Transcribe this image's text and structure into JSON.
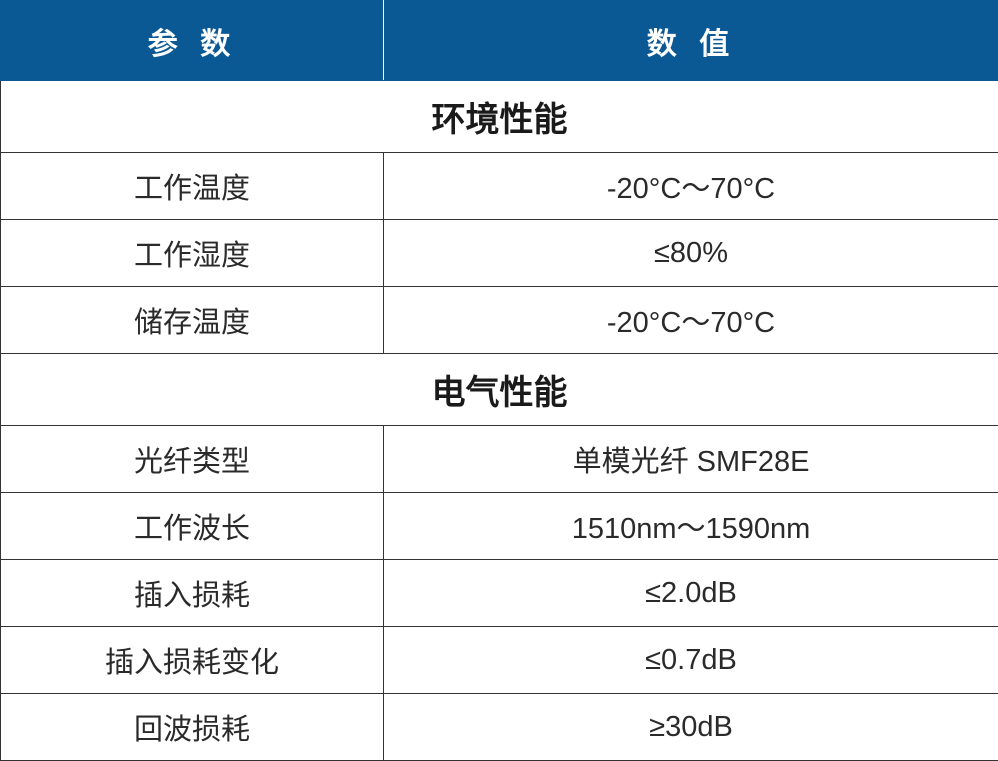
{
  "header": {
    "param": "参 数",
    "value": "数 值"
  },
  "sections": [
    {
      "title": "环境性能",
      "rows": [
        {
          "param": "工作温度",
          "value": "-20°C～70°C"
        },
        {
          "param": "工作湿度",
          "value": "≤80%"
        },
        {
          "param": "储存温度",
          "value": "-20°C～70°C"
        }
      ]
    },
    {
      "title": "电气性能",
      "rows": [
        {
          "param": "光纤类型",
          "value": "单模光纤 SMF28E"
        },
        {
          "param": "工作波长",
          "value": "1510nm～1590nm"
        },
        {
          "param": "插入损耗",
          "value": "≤2.0dB"
        },
        {
          "param": "插入损耗变化",
          "value": "≤0.7dB"
        },
        {
          "param": "回波损耗",
          "value": "≥30dB"
        }
      ]
    }
  ],
  "colors": {
    "header_bg": "#0a5894",
    "header_text": "#ffffff",
    "border": "#333333"
  }
}
